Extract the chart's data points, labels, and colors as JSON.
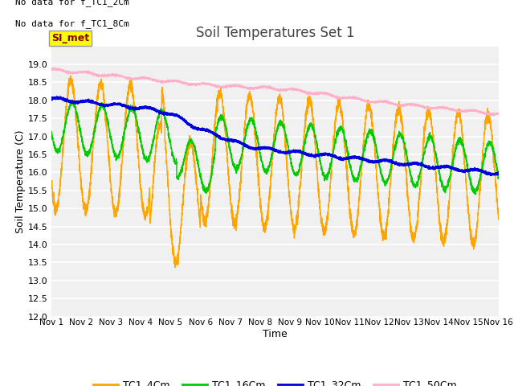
{
  "title": "Soil Temperatures Set 1",
  "xlabel": "Time",
  "ylabel": "Soil Temperature (C)",
  "ylim": [
    12.0,
    19.5
  ],
  "yticks": [
    12.0,
    12.5,
    13.0,
    13.5,
    14.0,
    14.5,
    15.0,
    15.5,
    16.0,
    16.5,
    17.0,
    17.5,
    18.0,
    18.5,
    19.0
  ],
  "xtick_labels": [
    "Nov 1",
    "Nov 2",
    "Nov 3",
    "Nov 4",
    "Nov 5",
    "Nov 6",
    "Nov 7",
    "Nov 8",
    "Nov 9",
    "Nov 10",
    "Nov 11",
    "Nov 12",
    "Nov 13",
    "Nov 14",
    "Nov 15",
    "Nov 16"
  ],
  "no_data_text1": "No data for f_TC1_2Cm",
  "no_data_text2": "No data for f_TC1_8Cm",
  "si_met_label": "SI_met",
  "colors": {
    "TC1_4Cm": "#FFA500",
    "TC1_16Cm": "#00CC00",
    "TC1_32Cm": "#0000DD",
    "TC1_50Cm": "#FFB0C8"
  },
  "legend_labels": [
    "TC1_4Cm",
    "TC1_16Cm",
    "TC1_32Cm",
    "TC1_50Cm"
  ],
  "background_color": "#FFFFFF",
  "plot_bg_color": "#F0F0F0",
  "grid_color": "#FFFFFF"
}
